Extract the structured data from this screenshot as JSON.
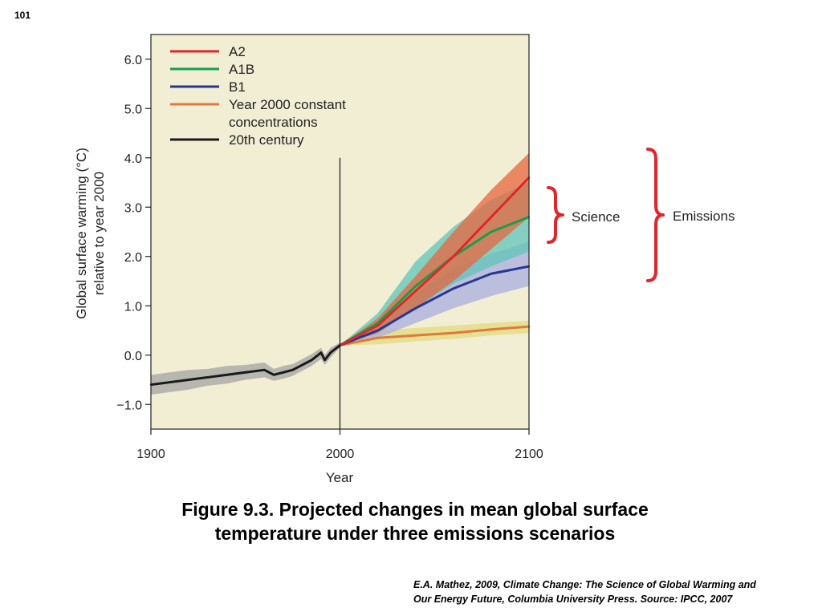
{
  "slide_number": "101",
  "caption_line1": "Figure 9.3.  Projected changes in mean global surface",
  "caption_line2": "temperature under three emissions scenarios",
  "credit_line1": "E.A. Mathez, 2009, Climate Change: The Science of Global Warming and",
  "credit_line2": "Our Energy Future, Columbia University Press.  Source: IPCC, 2007",
  "chart_data": {
    "type": "line",
    "xlabel": "Year",
    "ylabel_line1": "Global surface warming (°C)",
    "ylabel_line2": "relative to year 2000",
    "x_ticks": [
      "1900",
      "2000",
      "2100"
    ],
    "y_ticks": [
      "6.0",
      "5.0",
      "4.0",
      "3.0",
      "2.0",
      "1.0",
      "0.0",
      "−1.0"
    ],
    "xlim": [
      1900,
      2100
    ],
    "ylim": [
      -1.5,
      6.5
    ],
    "background": "#f1eed4",
    "vertical_line_year": 2000,
    "legend_position": "top-left",
    "series": [
      {
        "name": "A2",
        "color": "#e0262b",
        "band_color": "#e8663f",
        "x": [
          2000,
          2020,
          2040,
          2060,
          2080,
          2100
        ],
        "y": [
          0.2,
          0.6,
          1.3,
          2.0,
          2.8,
          3.6
        ],
        "y_low": [
          0.2,
          0.45,
          0.95,
          1.5,
          2.15,
          2.8
        ],
        "y_high": [
          0.2,
          0.75,
          1.6,
          2.5,
          3.35,
          4.1
        ]
      },
      {
        "name": "A1B",
        "color": "#14a04a",
        "band_color": "#5fc4b8",
        "x": [
          2000,
          2020,
          2040,
          2060,
          2080,
          2100
        ],
        "y": [
          0.2,
          0.65,
          1.4,
          2.0,
          2.5,
          2.8
        ],
        "y_low": [
          0.2,
          0.45,
          0.95,
          1.45,
          1.8,
          2.1
        ],
        "y_high": [
          0.2,
          0.85,
          1.9,
          2.6,
          3.15,
          3.5
        ]
      },
      {
        "name": "B1",
        "color": "#2a3691",
        "band_color": "#a8aee0",
        "x": [
          2000,
          2020,
          2040,
          2060,
          2080,
          2100
        ],
        "y": [
          0.2,
          0.5,
          0.95,
          1.35,
          1.65,
          1.8
        ],
        "y_low": [
          0.2,
          0.35,
          0.65,
          0.95,
          1.2,
          1.4
        ],
        "y_high": [
          0.2,
          0.65,
          1.25,
          1.75,
          2.05,
          2.3
        ]
      },
      {
        "name": "Year 2000 constant concentrations",
        "legend_lines": [
          "Year 2000 constant",
          "concentrations"
        ],
        "color": "#e07a3c",
        "band_color": "#e3d97c",
        "x": [
          2000,
          2020,
          2040,
          2060,
          2080,
          2100
        ],
        "y": [
          0.2,
          0.35,
          0.4,
          0.45,
          0.52,
          0.58
        ],
        "y_low": [
          0.2,
          0.22,
          0.28,
          0.33,
          0.4,
          0.45
        ],
        "y_high": [
          0.2,
          0.5,
          0.55,
          0.6,
          0.65,
          0.7
        ]
      },
      {
        "name": "20th century",
        "color": "#1a1a1a",
        "band_color": "#a3a3a3",
        "x": [
          1900,
          1910,
          1920,
          1930,
          1940,
          1950,
          1960,
          1965,
          1970,
          1975,
          1980,
          1985,
          1990,
          1992,
          1995,
          2000
        ],
        "y": [
          -0.6,
          -0.55,
          -0.5,
          -0.45,
          -0.4,
          -0.35,
          -0.3,
          -0.4,
          -0.35,
          -0.3,
          -0.2,
          -0.1,
          0.05,
          -0.1,
          0.05,
          0.2
        ],
        "y_low": [
          -0.8,
          -0.75,
          -0.7,
          -0.62,
          -0.58,
          -0.5,
          -0.45,
          -0.52,
          -0.48,
          -0.42,
          -0.32,
          -0.22,
          -0.08,
          -0.2,
          -0.05,
          0.15
        ],
        "y_high": [
          -0.4,
          -0.35,
          -0.3,
          -0.28,
          -0.22,
          -0.2,
          -0.15,
          -0.28,
          -0.22,
          -0.18,
          -0.08,
          0.02,
          0.15,
          0.0,
          0.15,
          0.25
        ]
      }
    ],
    "annotations": [
      {
        "text": "Science",
        "color": "#e0262b"
      },
      {
        "text": "Emissions",
        "color": "#e0262b"
      }
    ]
  }
}
